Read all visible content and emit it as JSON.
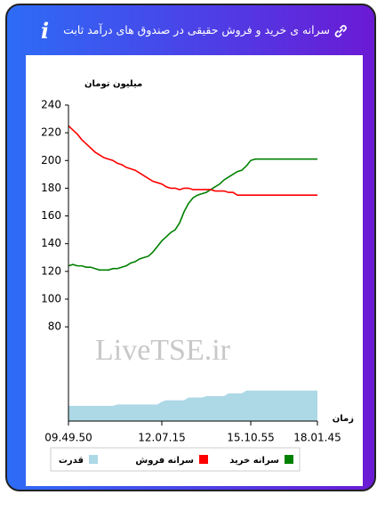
{
  "info_icon": "i",
  "chart_data": {
    "type": "line",
    "title": "سرانه ی خرید و فروش حقیقی در صندوق های درآمد ثابت",
    "y_label": "میلیون تومان",
    "x_label": "زمان",
    "watermark": "LiveTSE.ir",
    "categories": [
      "09.49.50",
      null,
      null,
      null,
      null,
      null,
      null,
      null,
      null,
      null,
      null,
      null,
      null,
      null,
      null,
      null,
      null,
      null,
      null,
      null,
      null,
      "12.07.15",
      null,
      null,
      null,
      null,
      null,
      null,
      null,
      null,
      null,
      null,
      null,
      null,
      null,
      null,
      null,
      null,
      null,
      null,
      null,
      "15.10.55",
      null,
      null,
      null,
      null,
      null,
      null,
      null,
      null,
      null,
      null,
      null,
      null,
      null,
      null,
      "18.01.45"
    ],
    "ylim": [
      12,
      240
    ],
    "yticks": [
      80,
      100,
      120,
      140,
      160,
      180,
      200,
      220,
      240
    ],
    "series": [
      {
        "name": "سرانه خرید",
        "color": "#008000",
        "kind": "line",
        "values": [
          124,
          125,
          124,
          124,
          123,
          123,
          122,
          121,
          121,
          121,
          122,
          122,
          123,
          124,
          126,
          127,
          129,
          130,
          131,
          134,
          138,
          142,
          145,
          148,
          150,
          155,
          163,
          169,
          173,
          175,
          176,
          177,
          179,
          181,
          183,
          186,
          188,
          190,
          192,
          193,
          196,
          200,
          201,
          201,
          201,
          201,
          201,
          201,
          201,
          201,
          201,
          201,
          201,
          201,
          201,
          201,
          201
        ]
      },
      {
        "name": "سرانه فروش",
        "color": "#ff0000",
        "kind": "line",
        "values": [
          225,
          222,
          219,
          215,
          212,
          209,
          206,
          204,
          202,
          201,
          200,
          198,
          197,
          195,
          194,
          193,
          191,
          189,
          187,
          185,
          184,
          183,
          181,
          180,
          180,
          179,
          180,
          180,
          179,
          179,
          179,
          179,
          179,
          178,
          178,
          178,
          177,
          177,
          175,
          175,
          175,
          175,
          175,
          175,
          175,
          175,
          175,
          175,
          175,
          175,
          175,
          175,
          175,
          175,
          175,
          175,
          175
        ]
      },
      {
        "name": "قدرت",
        "color": "#add8e6",
        "kind": "area",
        "values": [
          23,
          23,
          23,
          23,
          23,
          23,
          23,
          23,
          23,
          23,
          23,
          24,
          24,
          24,
          24,
          24,
          24,
          24,
          24,
          24,
          24,
          26,
          27,
          27,
          27,
          27,
          27,
          29,
          29,
          29,
          29,
          30,
          30,
          30,
          30,
          30,
          32,
          32,
          32,
          32,
          34,
          34,
          34,
          34,
          34,
          34,
          34,
          34,
          34,
          34,
          34,
          34,
          34,
          34,
          34,
          34,
          34
        ]
      }
    ]
  }
}
